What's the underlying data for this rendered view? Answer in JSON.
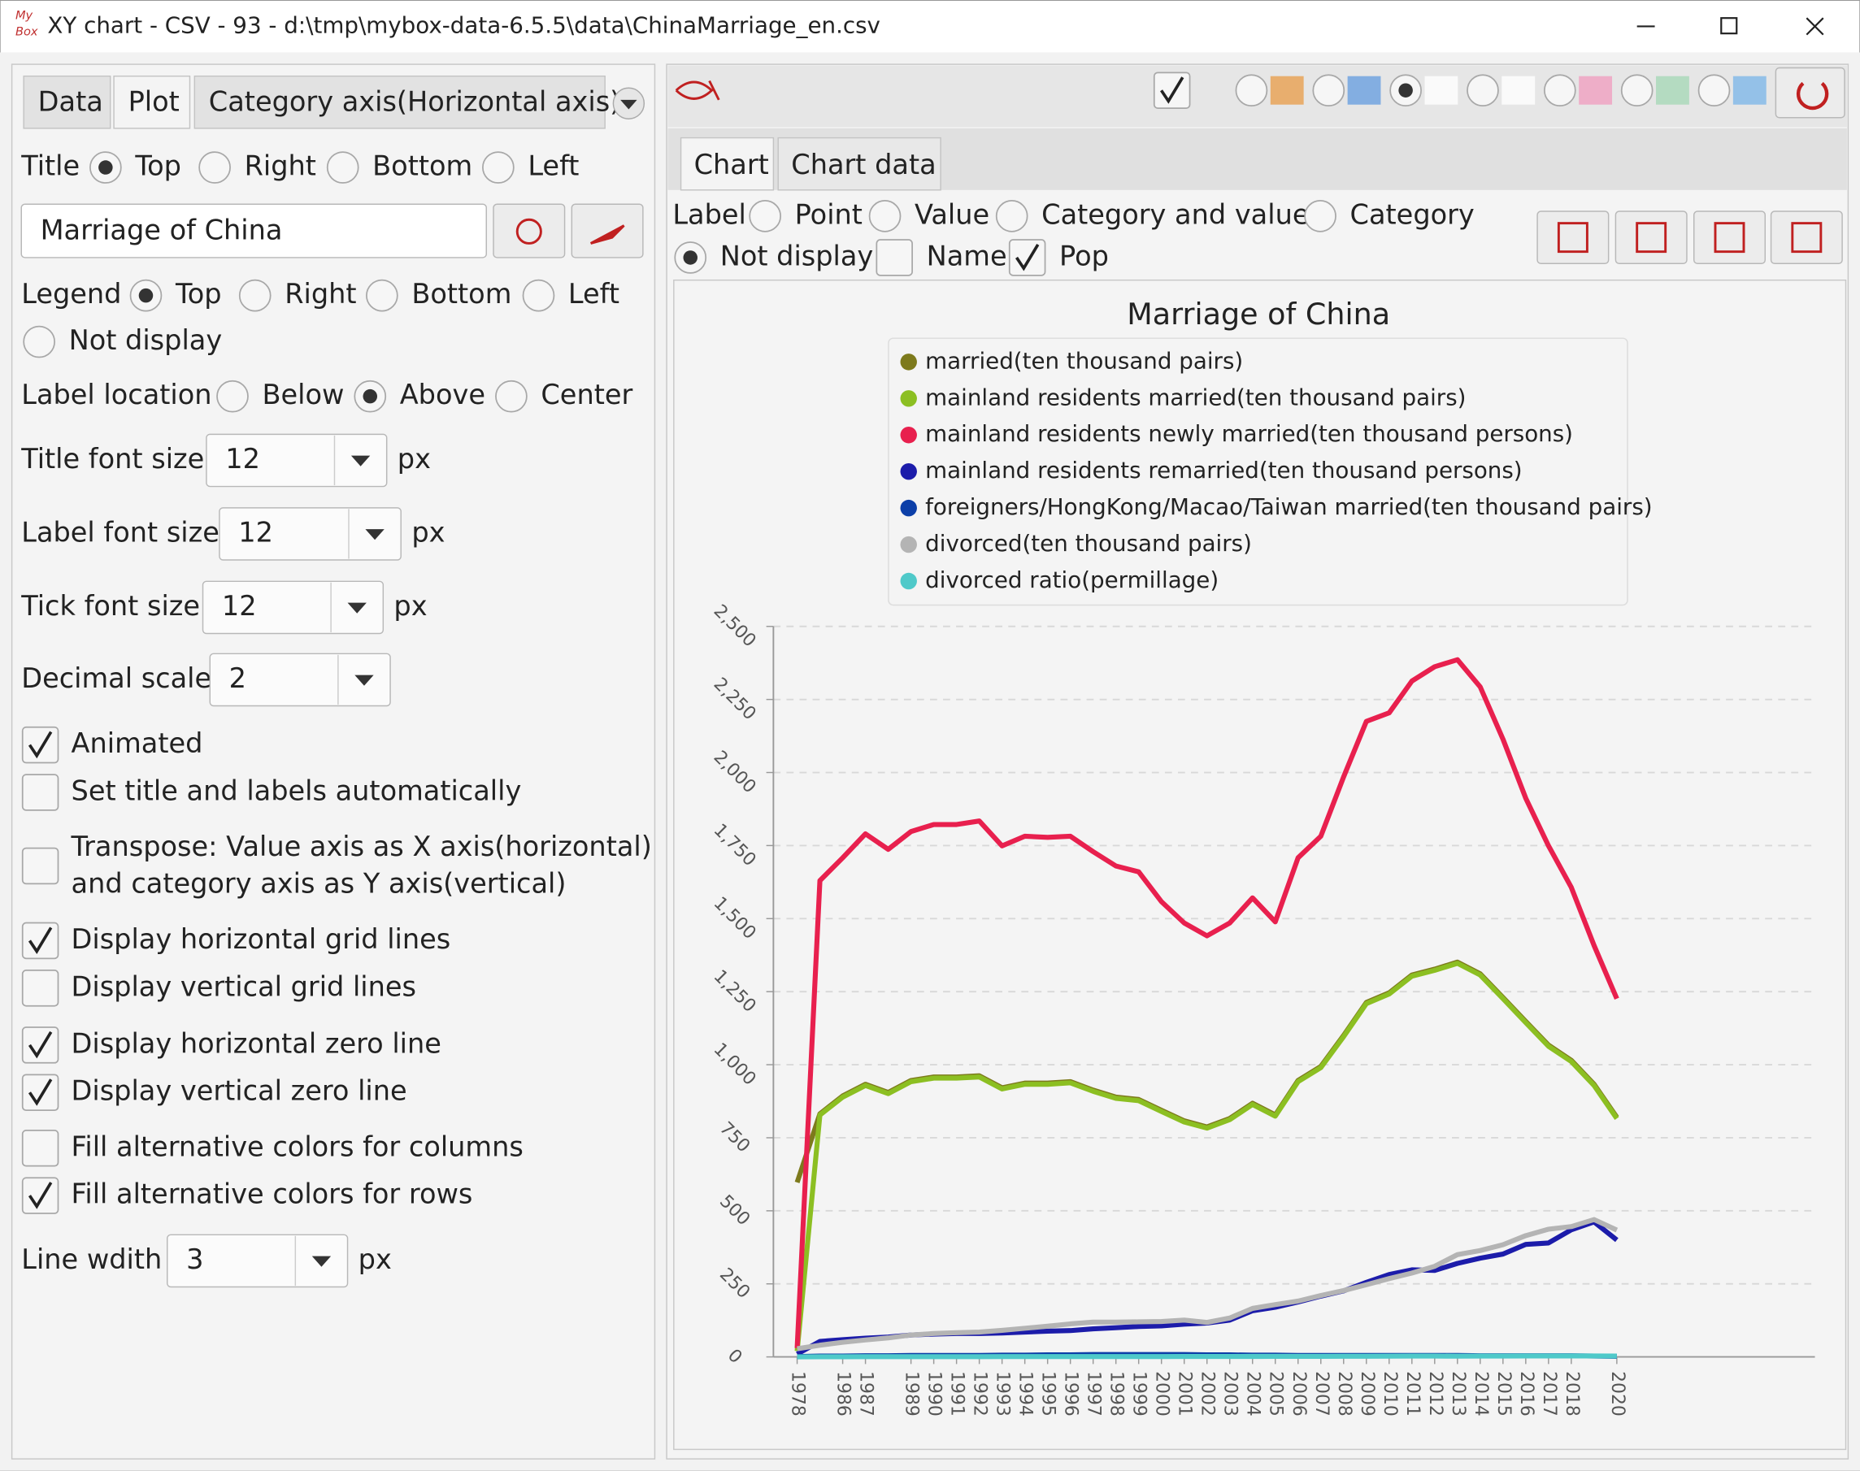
{
  "window": {
    "title": "XY chart - CSV - 93 - d:\\tmp\\mybox-data-6.5.5\\data\\ChinaMarriage_en.csv"
  },
  "left_tabs": [
    "Data",
    "Plot",
    "Category axis(Horizontal axis)"
  ],
  "title_position": {
    "label": "Title",
    "options": [
      "Top",
      "Right",
      "Bottom",
      "Left"
    ],
    "selected": 0
  },
  "title_text": "Marriage of China",
  "legend_position": {
    "label": "Legend",
    "options": [
      "Top",
      "Right",
      "Bottom",
      "Left",
      "Not display"
    ],
    "selected": 0
  },
  "label_location": {
    "label": "Label location",
    "options": [
      "Below",
      "Above",
      "Center"
    ],
    "selected": 1
  },
  "font_sizes": [
    {
      "label": "Title font size",
      "value": 12,
      "unit": "px"
    },
    {
      "label": "Label font size",
      "value": 12,
      "unit": "px"
    },
    {
      "label": "Tick font size",
      "value": 12,
      "unit": "px"
    }
  ],
  "decimal_scale": {
    "label": "Decimal scale",
    "value": 2
  },
  "checkboxes": [
    {
      "label": "Animated",
      "checked": true
    },
    {
      "label": "Set title and labels automatically",
      "checked": false
    },
    {
      "label": [
        "Transpose: Value axis as X axis(horizontal)",
        "and category axis as Y axis(vertical)"
      ],
      "checked": false
    },
    {
      "label": "Display horizontal grid lines",
      "checked": true
    },
    {
      "label": "Display vertical grid lines",
      "checked": false
    },
    {
      "label": "Display horizontal zero line",
      "checked": true
    },
    {
      "label": "Display vertical zero line",
      "checked": true
    },
    {
      "label": "Fill alternative colors for columns",
      "checked": false
    },
    {
      "label": "Fill alternative colors for rows",
      "checked": true
    }
  ],
  "line_width": {
    "label": "Line wdith",
    "value": 3,
    "unit": "px"
  },
  "chart_tabs": [
    "Chart",
    "Chart data"
  ],
  "label_options": {
    "label": "Label",
    "options": [
      "Point",
      "Value",
      "Category and value",
      "Category",
      "Not display"
    ],
    "selected": 4
  },
  "name_pop": [
    {
      "label": "Name",
      "checked": false
    },
    {
      "label": "Pop",
      "checked": true
    }
  ],
  "chart_data": {
    "type": "line",
    "title": "Marriage of China",
    "categories": [
      "1978",
      null,
      "1986",
      "1987",
      null,
      "1989",
      "1990",
      "1991",
      "1992",
      "1993",
      "1994",
      "1995",
      "1996",
      "1997",
      "1998",
      "1999",
      "2000",
      "2001",
      "2002",
      "2003",
      "2004",
      "2005",
      "2006",
      "2007",
      "2008",
      "2009",
      "2010",
      "2011",
      "2012",
      "2013",
      "2014",
      "2015",
      "2016",
      "2017",
      "2018",
      null,
      "2020"
    ],
    "ylim": [
      0,
      2500
    ],
    "yticks": [
      0,
      250,
      500,
      750,
      {
        "value": 1000,
        "label": "1,000"
      },
      {
        "value": 1250,
        "label": "1,250"
      },
      {
        "value": 1500,
        "label": "1,500"
      },
      {
        "value": 1750,
        "label": "1,750"
      },
      {
        "value": 2000,
        "label": "2,000"
      },
      {
        "value": 2250,
        "label": "2,250"
      },
      {
        "value": 2500,
        "label": "2,500"
      }
    ],
    "grid": true,
    "legend": "top",
    "series": [
      {
        "name": "married(ten thousand pairs)",
        "color": "#7d7a1c",
        "values": [
          597,
          832,
          893,
          933,
          905,
          946,
          958,
          958,
          962,
          921,
          937,
          937,
          942,
          913,
          889,
          881,
          844,
          808,
          787,
          816,
          868,
          828,
          946,
          994,
          1100,
          1213,
          1246,
          1307,
          1327,
          1351,
          1311,
          1230,
          1148,
          1067,
          1015,
          933,
          820
        ]
      },
      {
        "name": "mainland residents married(ten thousand pairs)",
        "color": "#8cbf22",
        "values": [
          20,
          828,
          889,
          929,
          901,
          942,
          954,
          954,
          958,
          917,
          933,
          933,
          938,
          909,
          885,
          877,
          840,
          804,
          783,
          812,
          864,
          824,
          942,
          990,
          1096,
          1209,
          1242,
          1303,
          1323,
          1347,
          1307,
          1226,
          1144,
          1063,
          1011,
          929,
          816
        ]
      },
      {
        "name": "mainland residents newly married(ten thousand persons)",
        "color": "#e8204e",
        "values": [
          30,
          1630,
          1708,
          1790,
          1737,
          1798,
          1822,
          1822,
          1834,
          1749,
          1782,
          1778,
          1782,
          1729,
          1680,
          1660,
          1558,
          1485,
          1441,
          1485,
          1571,
          1489,
          1708,
          1782,
          1985,
          2175,
          2204,
          2313,
          2362,
          2386,
          2293,
          2114,
          1912,
          1749,
          1607,
          1408,
          1226
        ]
      },
      {
        "name": "mainland residents remarried(ten thousand persons)",
        "color": "#1c1caa",
        "values": [
          10,
          53,
          59,
          64,
          68,
          75,
          78,
          80,
          80,
          82,
          85,
          88,
          90,
          96,
          100,
          104,
          106,
          112,
          116,
          126,
          158,
          170,
          188,
          208,
          226,
          255,
          282,
          298,
          296,
          320,
          338,
          352,
          385,
          390,
          435,
          462,
          400
        ]
      },
      {
        "name": "foreigners/HongKong/Macao/Taiwan married(ten thousand pairs)",
        "color": "#0c3fa8",
        "values": [
          1,
          3,
          3,
          4,
          4,
          5,
          5,
          5,
          5,
          6,
          6,
          7,
          7,
          8,
          8,
          8,
          8,
          8,
          7,
          7,
          6,
          6,
          5,
          5,
          5,
          5,
          5,
          5,
          5,
          5,
          4,
          4,
          4,
          4,
          4,
          3,
          2
        ]
      },
      {
        "name": "divorced(ten thousand pairs)",
        "color": "#b4b4b4",
        "values": [
          28,
          40,
          50,
          58,
          65,
          75,
          80,
          83,
          85,
          91,
          98,
          105,
          113,
          119,
          119,
          120,
          121,
          126,
          118,
          133,
          166,
          179,
          191,
          210,
          227,
          247,
          268,
          287,
          310,
          350,
          364,
          384,
          415,
          437,
          446,
          470,
          434
        ]
      },
      {
        "name": "divorced ratio(permillage)",
        "color": "#4fc9c9",
        "values": [
          0.3,
          0.5,
          0.6,
          0.7,
          0.7,
          0.8,
          0.8,
          0.9,
          0.9,
          1,
          1,
          1.1,
          1.1,
          1.2,
          1.2,
          1.3,
          1.3,
          1.4,
          1.5,
          1.6,
          1.7,
          1.8,
          1.9,
          2,
          2.1,
          2.3,
          2.6,
          2.8,
          2.9,
          2.6,
          2.8,
          3,
          3.2,
          3.2,
          3.2,
          3.4,
          3.1
        ]
      }
    ]
  }
}
